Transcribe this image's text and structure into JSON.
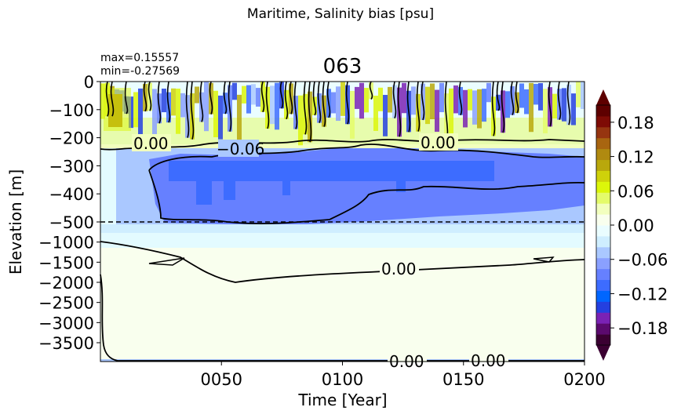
{
  "figure": {
    "suptitle": "Maritime, Salinity bias [psu]",
    "max_label": "max=0.15557",
    "min_label": "min=-0.27569",
    "panel_title": "063"
  },
  "chart_data": {
    "type": "heatmap",
    "title": "063",
    "xlabel": "Time [Year]",
    "ylabel": "Elevation [m]",
    "x_ticks": [
      "0050",
      "0100",
      "0150",
      "0200"
    ],
    "x_tick_values": [
      50,
      100,
      150,
      200
    ],
    "xlim": [
      0,
      200
    ],
    "y_ticks": [
      "0",
      "−100",
      "−200",
      "−300",
      "−400",
      "−500",
      "−1000",
      "−1500",
      "−2000",
      "−2500",
      "−3000",
      "−3500"
    ],
    "y_tick_values": [
      0,
      -100,
      -200,
      -300,
      -400,
      -500,
      -1000,
      -1500,
      -2000,
      -2500,
      -3000,
      -3500
    ],
    "y_scale": "piecewise: linear 0 to -500 (upper part), compressed linear -500 to bottom (lower part)",
    "dashed_reference_line": -500,
    "colorbar": {
      "ticks": [
        "0.18",
        "0.12",
        "0.06",
        "0.00",
        "−0.06",
        "−0.12",
        "−0.18"
      ],
      "tick_values": [
        0.18,
        0.12,
        0.06,
        0.0,
        -0.06,
        -0.12,
        -0.18
      ],
      "range": [
        -0.21,
        0.21
      ],
      "extend": "both",
      "colors": [
        "#3b0032",
        "#5b0a6e",
        "#7a22b4",
        "#2440e0",
        "#0066ff",
        "#3d6cff",
        "#6680ff",
        "#8aa0ff",
        "#aac8ff",
        "#cfeeff",
        "#eafdff",
        "#f9ffee",
        "#f2ffbe",
        "#e4fb6a",
        "#dcf60a",
        "#cfd10a",
        "#b9a80c",
        "#b08a10",
        "#a86510",
        "#963510",
        "#7e0b05",
        "#5e0000"
      ]
    },
    "contour_labels": [
      "0.00",
      "−0.06",
      "0.00",
      "0.00",
      "0.00",
      "0.00"
    ],
    "layers": [
      {
        "depth_range_m": [
          0,
          -200
        ],
        "bias_psu_range": [
          -0.18,
          0.15
        ],
        "description": "alternating positive/negative bands"
      },
      {
        "depth_range_m": [
          -200,
          -230
        ],
        "bias_psu": 0.02
      },
      {
        "depth_range_m": [
          -230,
          -500
        ],
        "bias_psu": -0.06,
        "core_bias_psu": -0.09
      },
      {
        "depth_range_m": [
          -500,
          -1600
        ],
        "bias_psu": -0.01
      },
      {
        "depth_range_m": [
          -1600,
          -4000
        ],
        "bias_psu": 0.0
      }
    ]
  }
}
